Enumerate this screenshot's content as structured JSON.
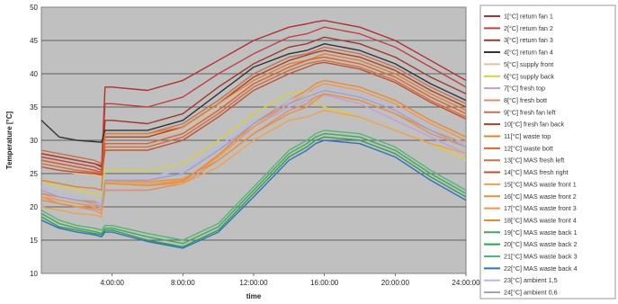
{
  "chart_data": {
    "type": "line",
    "title": "",
    "xlabel": "time",
    "ylabel": "Temperature [°C]",
    "xlim": [
      0,
      24
    ],
    "ylim": [
      10,
      50
    ],
    "x_ticks": [
      {
        "value": 4,
        "label": "4:00:00"
      },
      {
        "value": 8,
        "label": "8:00:00"
      },
      {
        "value": 12,
        "label": "12:00:00"
      },
      {
        "value": 16,
        "label": "16:00:00"
      },
      {
        "value": 20,
        "label": "20:00:00"
      },
      {
        "value": 24,
        "label": "24:00:00"
      }
    ],
    "y_ticks": [
      10,
      15,
      20,
      25,
      30,
      35,
      40,
      45,
      50
    ],
    "grid": "horizontal",
    "legend_position": "right",
    "x": [
      0,
      1,
      2,
      3,
      3.4,
      3.6,
      4,
      6,
      8,
      10,
      12,
      14,
      15,
      15.5,
      16,
      18,
      20,
      22,
      24
    ],
    "series": [
      {
        "name": "1[°C]  return fan 1",
        "color": "#b03030",
        "values": [
          28,
          27.5,
          27,
          26.5,
          26,
          38,
          38,
          37.5,
          39,
          42,
          45,
          47,
          47.5,
          47.8,
          48,
          47,
          45,
          42,
          39
        ]
      },
      {
        "name": "2[°C]  return fan 2",
        "color": "#c04040",
        "values": [
          27.5,
          27,
          26.5,
          26,
          25.5,
          35.5,
          35.5,
          35,
          36.5,
          40,
          43,
          45.5,
          46,
          46.5,
          47,
          46,
          44,
          41,
          38
        ]
      },
      {
        "name": "3[°C]  return fan 3",
        "color": "#a03828",
        "values": [
          27,
          26.5,
          26,
          25.5,
          25.2,
          33,
          33,
          32.5,
          34,
          38,
          41.5,
          44,
          44.5,
          45,
          45.5,
          44.5,
          42.5,
          39.5,
          37
        ]
      },
      {
        "name": "4[°C]  return fan 4",
        "color": "#333333",
        "values": [
          33,
          30.5,
          30,
          29.8,
          29.7,
          31.5,
          31.5,
          31.5,
          33,
          37,
          41,
          43,
          43.5,
          44,
          44.5,
          43.5,
          41.5,
          38.5,
          36
        ]
      },
      {
        "name": "5[°C]  supply front",
        "color": "#e0c0a0",
        "values": [
          26,
          25.5,
          25,
          24.8,
          24.5,
          30.5,
          30.5,
          30.5,
          31.5,
          35,
          39,
          41.5,
          42,
          42.2,
          42.5,
          41.5,
          39.5,
          36.5,
          34
        ]
      },
      {
        "name": "6[°C]  supply back",
        "color": "#d8d040",
        "values": [
          24,
          23,
          22.5,
          22,
          21.5,
          25.5,
          25.5,
          25.5,
          26.5,
          30,
          34,
          37,
          37.5,
          35.5,
          35,
          33.5,
          31.5,
          29.5,
          27
        ]
      },
      {
        "name": "7[°C]  fresh top",
        "color": "#c0a0d8",
        "values": [
          22,
          21,
          20.5,
          20,
          19.5,
          24,
          24,
          24,
          25,
          28.5,
          32,
          35,
          36,
          36.5,
          36.8,
          35.5,
          33,
          30.5,
          28
        ]
      },
      {
        "name": "8[°C]  fresh bott",
        "color": "#d89070",
        "values": [
          21.5,
          20.5,
          20,
          19.5,
          19,
          22.5,
          22.5,
          22.5,
          23.5,
          27,
          31,
          34.5,
          35.5,
          36.5,
          37,
          36,
          34,
          31,
          29
        ]
      },
      {
        "name": "9[°C]  fresh fan left",
        "color": "#c87050",
        "values": [
          28.5,
          28,
          27.5,
          27,
          26.5,
          31,
          31,
          31,
          32.5,
          36,
          40,
          42.5,
          43,
          43.5,
          44,
          43,
          41,
          38,
          35.5
        ]
      },
      {
        "name": "10[°C]  fresh fan back",
        "color": "#b04020",
        "values": [
          28,
          27.5,
          27,
          26.5,
          26.2,
          30.5,
          30.5,
          30.5,
          32,
          35.5,
          39.5,
          42,
          42.8,
          43.2,
          43.5,
          42.5,
          40.5,
          37.5,
          35
        ]
      },
      {
        "name": "11[°C]  waste top",
        "color": "#e08030",
        "values": [
          24,
          23.5,
          23,
          22.8,
          22.5,
          31,
          31,
          31,
          32,
          35.5,
          39,
          41.5,
          42,
          42.5,
          43,
          42,
          40,
          37,
          34.5
        ]
      },
      {
        "name": "12[°C]  waste bott",
        "color": "#e06030",
        "values": [
          27,
          26.5,
          26,
          25.5,
          25.2,
          29.5,
          29.5,
          29.5,
          31,
          34.5,
          38.5,
          41,
          42,
          42.3,
          42.5,
          41.5,
          39.5,
          36.5,
          34
        ]
      },
      {
        "name": "13[°C]  MAS fresh left",
        "color": "#d07040",
        "values": [
          26.5,
          26,
          25.5,
          25.2,
          25,
          29,
          29,
          29,
          30.5,
          34,
          38,
          40.5,
          41.5,
          41.8,
          42,
          41,
          39,
          36,
          33.5
        ]
      },
      {
        "name": "14[°C]  MAS fresh right",
        "color": "#c05030",
        "values": [
          26,
          25.5,
          25.2,
          25,
          24.8,
          28.5,
          28.5,
          28.5,
          30,
          33.5,
          37.5,
          40,
          41,
          41.5,
          41.7,
          40.7,
          38.7,
          35.7,
          33.2
        ]
      },
      {
        "name": "15[°C]  MAS waste front 1",
        "color": "#f0a050",
        "values": [
          20,
          19.5,
          19,
          18.8,
          18.5,
          23.5,
          23.5,
          23.2,
          23.5,
          26,
          30,
          33,
          33.5,
          34,
          34.5,
          33.5,
          31.5,
          29.5,
          28
        ]
      },
      {
        "name": "16[°C]  MAS waste front 2",
        "color": "#e89040",
        "values": [
          21,
          20.5,
          20,
          19.8,
          19.5,
          24,
          24,
          23.8,
          24.2,
          27,
          31,
          34,
          35,
          36,
          37,
          36,
          34,
          31.5,
          29.5
        ]
      },
      {
        "name": "17[°C]  MAS waste front 3",
        "color": "#f09848",
        "values": [
          21.5,
          21,
          20.5,
          20.2,
          20,
          23.8,
          23.8,
          23.5,
          24,
          27.5,
          32,
          35.5,
          37,
          38,
          38.5,
          37.5,
          35.5,
          32.5,
          30
        ]
      },
      {
        "name": "18[°C]  MAS waste front 4",
        "color": "#e88838",
        "values": [
          22,
          21.5,
          21,
          20.8,
          20.5,
          23.5,
          23.5,
          23.2,
          23.8,
          27.8,
          32.5,
          36,
          37.5,
          38.5,
          39,
          38,
          36,
          33,
          30.5
        ]
      },
      {
        "name": "19[°C]  MAS waste back 1",
        "color": "#40a860",
        "values": [
          19,
          17.5,
          16.8,
          16.3,
          16,
          16.8,
          16.8,
          15.5,
          14.5,
          17,
          22.5,
          28,
          29.5,
          30.5,
          31,
          30.5,
          28.5,
          25,
          22
        ]
      },
      {
        "name": "20[°C]  MAS waste back 2",
        "color": "#30a050",
        "values": [
          18.5,
          17,
          16.5,
          16,
          15.8,
          16.5,
          16.5,
          15,
          14,
          16.5,
          22,
          27.5,
          29,
          30,
          30.5,
          30,
          28,
          24.5,
          21.5
        ]
      },
      {
        "name": "21[°C]  MAS waste back 3",
        "color": "#50b870",
        "values": [
          19.5,
          18,
          17.2,
          16.8,
          16.5,
          17.2,
          17.2,
          16,
          15,
          17.5,
          23,
          28.5,
          30,
          31,
          31.5,
          31,
          29,
          25.5,
          22.5
        ]
      },
      {
        "name": "22[°C]  MAS waste back 4",
        "color": "#3070c0",
        "values": [
          18,
          16.8,
          16.2,
          15.8,
          15.5,
          16.2,
          16.2,
          14.8,
          13.8,
          16.2,
          21.5,
          27,
          28.5,
          29.5,
          30,
          29.5,
          27.5,
          24,
          21
        ]
      },
      {
        "name": "23[°C]  ambient 1,5",
        "color": "#b8b8e0",
        "values": [
          23,
          22,
          21.5,
          21,
          20.5,
          24.5,
          24.5,
          24.5,
          25.5,
          29,
          33,
          36,
          37,
          37.5,
          38,
          37,
          35,
          32,
          29.5
        ]
      },
      {
        "name": "24[°C]  ambient 0,6",
        "color": "#a0a0c8",
        "values": [
          22.5,
          21.5,
          21,
          20.5,
          20,
          24,
          24,
          24,
          25,
          28.5,
          32.5,
          35.5,
          36.5,
          37,
          37.5,
          36.5,
          34.5,
          31.5,
          29
        ]
      }
    ]
  }
}
